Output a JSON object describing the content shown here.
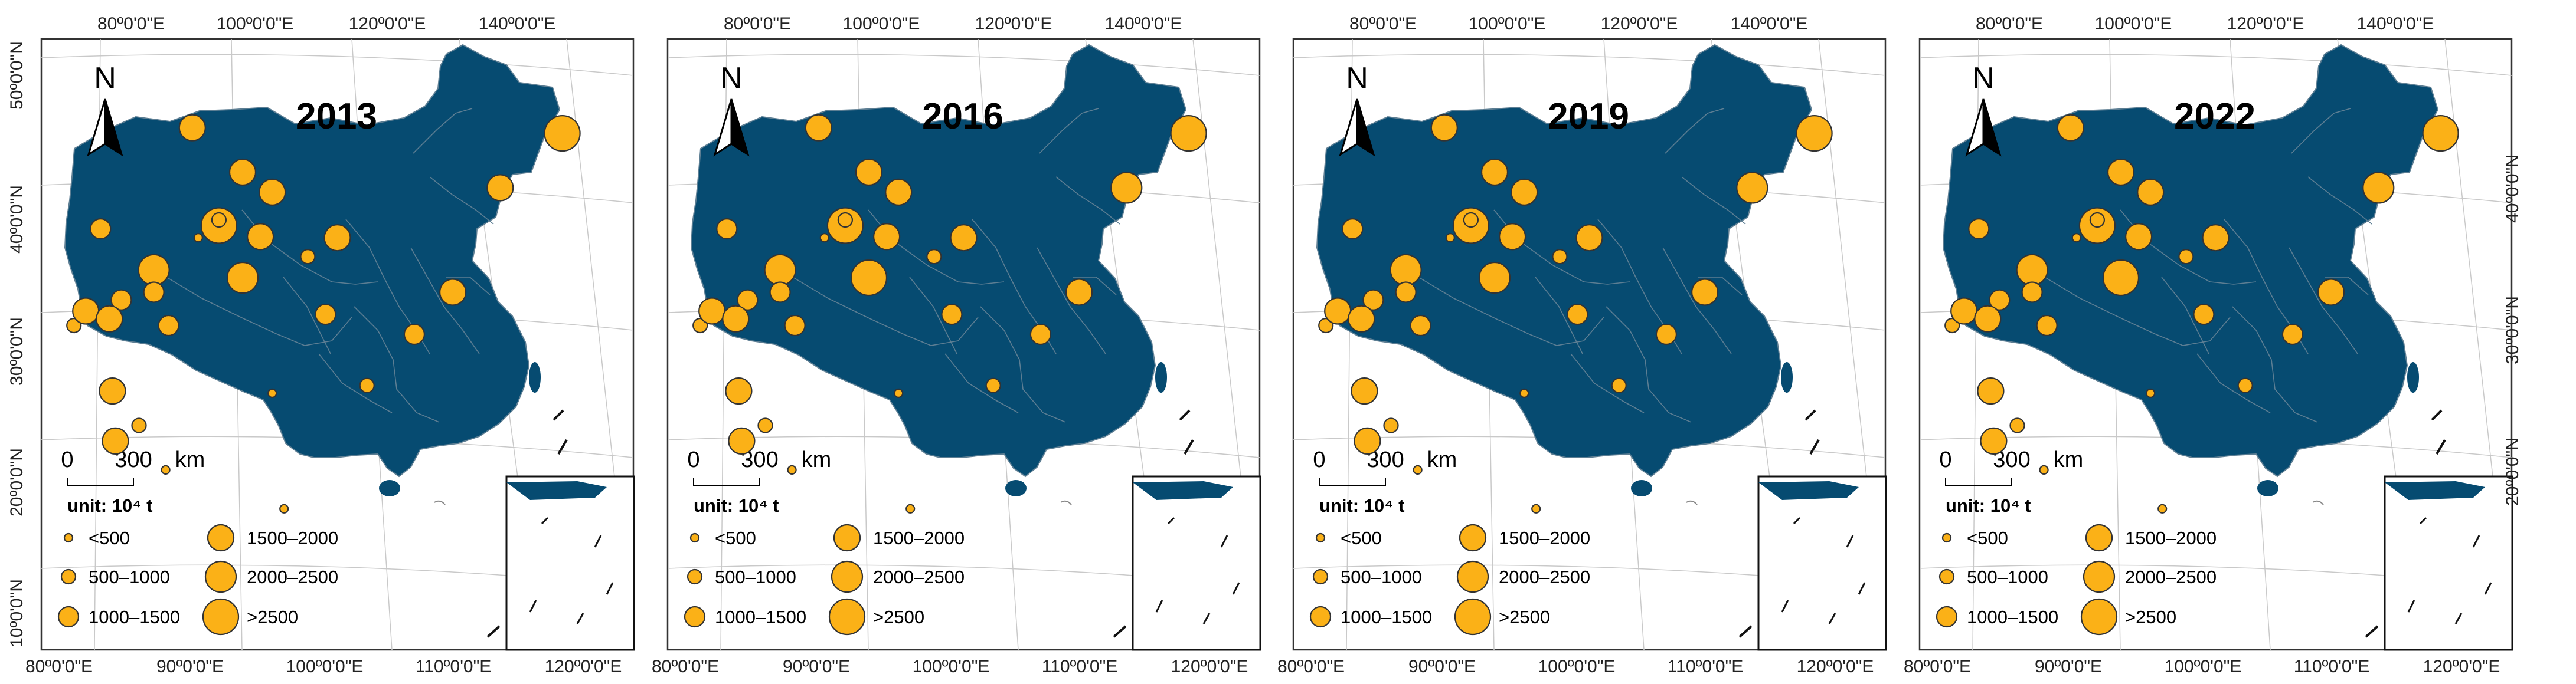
{
  "figure": {
    "lon_labels_top": [
      "80º0'0\"E",
      "100º0'0\"E",
      "120º0'0\"E",
      "140º0'0\"E"
    ],
    "lon_labels_bottom": [
      "80º0'0\"E",
      "90º0'0\"E",
      "100º0'0\"E",
      "110º0'0\"E",
      "120º0'0\"E"
    ],
    "lat_labels_left": [
      "50º0'0\"N",
      "40º0'0\"N",
      "30º0'0\"N",
      "20º0'0\"N",
      "10º0'0\"N"
    ],
    "lat_labels_right": [
      "40º0'0\"N",
      "30º0'0\"N",
      "20º0'0\"N"
    ],
    "north_label": "N",
    "scale_bar": {
      "zero": "0",
      "distance": "300",
      "unit": "km"
    },
    "unit_label": "unit: 10⁴ t",
    "legend": [
      {
        "label": "<500"
      },
      {
        "label": "500–1000"
      },
      {
        "label": "1000–1500"
      },
      {
        "label": "1500–2000"
      },
      {
        "label": "2000–2500"
      },
      {
        "label": ">2500"
      }
    ],
    "colors": {
      "land": "#064b71",
      "boundary": "#5d7e93",
      "marker": "#fbb117",
      "marker_stroke": "#333333",
      "graticule": "#c9c9c9",
      "frame": "#333333"
    },
    "panels": [
      {
        "year": "2013",
        "markers": [
          [
            5,
            17.6,
            12.65
          ],
          [
            3,
            15.5,
            12.16
          ],
          [
            3,
            13.9,
            11.22
          ],
          [
            2,
            12.6,
            10.84
          ],
          [
            1,
            11.0,
            10.38
          ],
          [
            3,
            10.0,
            11.71
          ],
          [
            2,
            9.6,
            11.02
          ],
          [
            1,
            9.0,
            11.54
          ],
          [
            0,
            7.8,
            10.31
          ],
          [
            0,
            8.2,
            9.27
          ],
          [
            0,
            4.2,
            9.62
          ],
          [
            1,
            1.1,
            10.92
          ],
          [
            4,
            3.8,
            11.42
          ],
          [
            5,
            6.0,
            11.82
          ],
          [
            4,
            6.8,
            11.35
          ],
          [
            3,
            7.4,
            11.72
          ],
          [
            3,
            7.8,
            12.12
          ],
          [
            1,
            6.0,
            11.87
          ],
          [
            3,
            6.8,
            12.3
          ],
          [
            3,
            5.1,
            12.7
          ],
          [
            0,
            5.3,
            11.71
          ],
          [
            2,
            4.3,
            10.92
          ],
          [
            1,
            3.3,
            10.02
          ],
          [
            2,
            3.8,
            11.22
          ],
          [
            2,
            2.7,
            11.15
          ],
          [
            2,
            2.0,
            11.79
          ],
          [
            3,
            1.5,
            11.05
          ],
          [
            3,
            2.3,
            10.98
          ],
          [
            3,
            2.4,
            10.33
          ],
          [
            3,
            2.5,
            9.88
          ]
        ]
      },
      {
        "year": "2016",
        "markers": [
          [
            5,
            17.6,
            12.65
          ],
          [
            4,
            15.5,
            12.16
          ],
          [
            3,
            13.9,
            11.22
          ],
          [
            2,
            12.6,
            10.84
          ],
          [
            1,
            11.0,
            10.38
          ],
          [
            3,
            10.0,
            11.71
          ],
          [
            2,
            9.6,
            11.02
          ],
          [
            1,
            9.0,
            11.54
          ],
          [
            0,
            7.8,
            10.31
          ],
          [
            0,
            8.2,
            9.27
          ],
          [
            0,
            4.2,
            9.62
          ],
          [
            1,
            1.1,
            10.92
          ],
          [
            4,
            3.8,
            11.42
          ],
          [
            5,
            6.0,
            11.82
          ],
          [
            5,
            6.8,
            11.35
          ],
          [
            3,
            7.4,
            11.72
          ],
          [
            3,
            7.8,
            12.12
          ],
          [
            1,
            6.0,
            11.87
          ],
          [
            3,
            6.8,
            12.3
          ],
          [
            3,
            5.1,
            12.7
          ],
          [
            0,
            5.3,
            11.71
          ],
          [
            2,
            4.3,
            10.92
          ],
          [
            1,
            3.3,
            10.02
          ],
          [
            2,
            3.8,
            11.22
          ],
          [
            2,
            2.7,
            11.15
          ],
          [
            2,
            2.0,
            11.79
          ],
          [
            3,
            1.5,
            11.05
          ],
          [
            3,
            2.3,
            10.98
          ],
          [
            3,
            2.4,
            10.33
          ],
          [
            3,
            2.5,
            9.88
          ]
        ]
      },
      {
        "year": "2019",
        "markers": [
          [
            5,
            17.6,
            12.65
          ],
          [
            4,
            15.5,
            12.16
          ],
          [
            3,
            13.9,
            11.22
          ],
          [
            2,
            12.6,
            10.84
          ],
          [
            1,
            11.0,
            10.38
          ],
          [
            3,
            10.0,
            11.71
          ],
          [
            2,
            9.6,
            11.02
          ],
          [
            1,
            9.0,
            11.54
          ],
          [
            0,
            7.8,
            10.31
          ],
          [
            0,
            8.2,
            9.27
          ],
          [
            0,
            4.2,
            9.62
          ],
          [
            1,
            1.1,
            10.92
          ],
          [
            4,
            3.8,
            11.42
          ],
          [
            5,
            6.0,
            11.82
          ],
          [
            4,
            6.8,
            11.35
          ],
          [
            3,
            7.4,
            11.72
          ],
          [
            3,
            7.8,
            12.12
          ],
          [
            1,
            6.0,
            11.87
          ],
          [
            3,
            6.8,
            12.3
          ],
          [
            3,
            5.1,
            12.7
          ],
          [
            0,
            5.3,
            11.71
          ],
          [
            2,
            4.3,
            10.92
          ],
          [
            1,
            3.3,
            10.02
          ],
          [
            2,
            3.8,
            11.22
          ],
          [
            2,
            2.7,
            11.15
          ],
          [
            2,
            2.0,
            11.79
          ],
          [
            3,
            1.5,
            11.05
          ],
          [
            3,
            2.3,
            10.98
          ],
          [
            3,
            2.4,
            10.33
          ],
          [
            3,
            2.5,
            9.88
          ]
        ]
      },
      {
        "year": "2022",
        "markers": [
          [
            5,
            17.6,
            12.65
          ],
          [
            4,
            15.5,
            12.16
          ],
          [
            3,
            13.9,
            11.22
          ],
          [
            2,
            12.6,
            10.84
          ],
          [
            1,
            11.0,
            10.38
          ],
          [
            3,
            10.0,
            11.71
          ],
          [
            2,
            9.6,
            11.02
          ],
          [
            1,
            9.0,
            11.54
          ],
          [
            0,
            7.8,
            10.31
          ],
          [
            0,
            8.2,
            9.27
          ],
          [
            0,
            4.2,
            9.62
          ],
          [
            1,
            1.1,
            10.92
          ],
          [
            4,
            3.8,
            11.42
          ],
          [
            5,
            6.0,
            11.82
          ],
          [
            5,
            6.8,
            11.35
          ],
          [
            3,
            7.4,
            11.72
          ],
          [
            3,
            7.8,
            12.12
          ],
          [
            1,
            6.0,
            11.87
          ],
          [
            3,
            6.8,
            12.3
          ],
          [
            3,
            5.1,
            12.7
          ],
          [
            0,
            5.3,
            11.71
          ],
          [
            2,
            4.3,
            10.92
          ],
          [
            1,
            3.3,
            10.02
          ],
          [
            2,
            3.8,
            11.22
          ],
          [
            2,
            2.7,
            11.15
          ],
          [
            2,
            2.0,
            11.79
          ],
          [
            3,
            1.5,
            11.05
          ],
          [
            3,
            2.3,
            10.98
          ],
          [
            3,
            2.4,
            10.33
          ],
          [
            3,
            2.5,
            9.88
          ]
        ]
      }
    ]
  }
}
